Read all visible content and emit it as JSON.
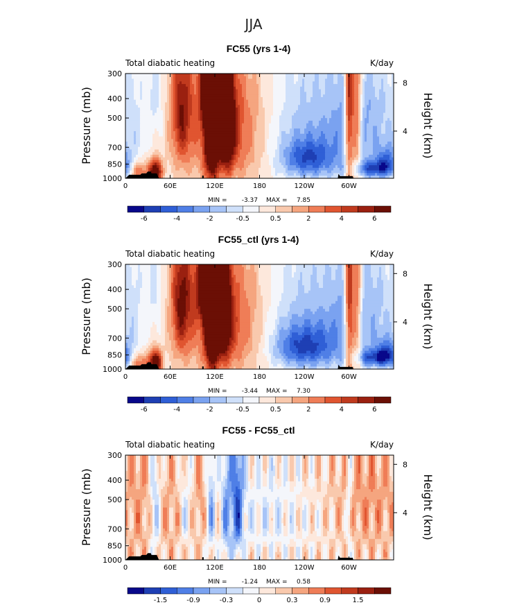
{
  "page_title": "JJA",
  "chart_data": [
    {
      "type": "heatmap",
      "title": "FC55 (yrs 1-4)",
      "left_string": "Total diabatic heating",
      "right_string": "K/day",
      "ylabel": "Pressure (mb)",
      "ylabel_right": "Height (km)",
      "x_ticks": [
        "0",
        "60E",
        "120E",
        "180",
        "120W",
        "60W"
      ],
      "y_ticks": [
        "300",
        "400",
        "500",
        "700",
        "850",
        "1000"
      ],
      "y_right_ticks": [
        "8",
        "4"
      ],
      "stats": {
        "min_label": "MIN =",
        "min": "-3.37",
        "max_label": "MAX =",
        "max": "7.85"
      },
      "colorbar": {
        "labels": [
          "-6",
          "-4",
          "-2",
          "-0.5",
          "0.5",
          "2",
          "4",
          "6"
        ],
        "colors": [
          "#08088a",
          "#1e3fb4",
          "#2f5fd6",
          "#4f7fe6",
          "#7aa2f0",
          "#a7c4f7",
          "#cfe0fa",
          "#f4f6fb",
          "#fde8dc",
          "#f9c9ad",
          "#f5a57f",
          "#ef7d57",
          "#e05530",
          "#c03a1e",
          "#9a2010",
          "#6b0f05"
        ]
      },
      "blobs": [
        {
          "lon": 315,
          "p": 550,
          "rx": 35,
          "ry": 300,
          "v": -2.5
        },
        {
          "lon": 330,
          "p": 900,
          "rx": 20,
          "ry": 60,
          "v": -3.3
        },
        {
          "lon": 40,
          "p": 380,
          "rx": 8,
          "ry": 150,
          "v": -1.2
        },
        {
          "lon": 75,
          "p": 450,
          "rx": 10,
          "ry": 250,
          "v": 4.2
        },
        {
          "lon": 110,
          "p": 350,
          "rx": 8,
          "ry": 120,
          "v": 4.5
        },
        {
          "lon": 115,
          "p": 500,
          "rx": 6,
          "ry": 350,
          "v": 7.5
        },
        {
          "lon": 135,
          "p": 500,
          "rx": 8,
          "ry": 250,
          "v": 6.5
        },
        {
          "lon": 125,
          "p": 550,
          "rx": 35,
          "ry": 320,
          "v": 2.8
        },
        {
          "lon": 160,
          "p": 600,
          "rx": 35,
          "ry": 300,
          "v": 1.6
        },
        {
          "lon": 300,
          "p": 470,
          "rx": 4,
          "ry": 420,
          "v": 6.0
        },
        {
          "lon": 310,
          "p": 450,
          "rx": 5,
          "ry": 400,
          "v": 5.0
        },
        {
          "lon": 40,
          "p": 930,
          "rx": 6,
          "ry": 90,
          "v": 7.0
        },
        {
          "lon": 18,
          "p": 930,
          "rx": 8,
          "ry": 80,
          "v": 3.5
        },
        {
          "lon": 245,
          "p": 800,
          "rx": 25,
          "ry": 120,
          "v": -3.2
        },
        {
          "lon": 232,
          "p": 600,
          "rx": 45,
          "ry": 300,
          "v": -2.0
        },
        {
          "lon": 350,
          "p": 830,
          "rx": 10,
          "ry": 100,
          "v": -3.0
        },
        {
          "lon": 10,
          "p": 700,
          "rx": 10,
          "ry": 400,
          "v": -0.8
        }
      ],
      "topo": [
        {
          "lon": 5,
          "p": 960
        },
        {
          "lon": 12,
          "p": 960
        },
        {
          "lon": 20,
          "p": 960
        },
        {
          "lon": 22,
          "p": 945
        },
        {
          "lon": 28,
          "p": 945
        },
        {
          "lon": 30,
          "p": 925
        },
        {
          "lon": 34,
          "p": 925
        },
        {
          "lon": 35,
          "p": 945
        },
        {
          "lon": 42,
          "p": 945
        },
        {
          "lon": 45,
          "p": 1000
        },
        {
          "lon": 103,
          "p": 1000
        },
        {
          "lon": 103,
          "p": 970
        },
        {
          "lon": 105,
          "p": 970
        },
        {
          "lon": 105,
          "p": 1000
        },
        {
          "lon": 285,
          "p": 1000
        },
        {
          "lon": 286,
          "p": 950
        },
        {
          "lon": 288,
          "p": 975
        },
        {
          "lon": 305,
          "p": 975
        },
        {
          "lon": 306,
          "p": 1000
        }
      ]
    },
    {
      "type": "heatmap",
      "title": "FC55_ctl (yrs 1-4)",
      "left_string": "Total diabatic heating",
      "right_string": "K/day",
      "ylabel": "Pressure (mb)",
      "ylabel_right": "Height (km)",
      "x_ticks": [
        "0",
        "60E",
        "120E",
        "180",
        "120W",
        "60W"
      ],
      "y_ticks": [
        "300",
        "400",
        "500",
        "700",
        "850",
        "1000"
      ],
      "y_right_ticks": [
        "8",
        "4"
      ],
      "stats": {
        "min_label": "MIN =",
        "min": "-3.44",
        "max_label": "MAX =",
        "max": "7.30"
      },
      "colorbar": {
        "labels": [
          "-6",
          "-4",
          "-2",
          "-0.5",
          "0.5",
          "2",
          "4",
          "6"
        ],
        "colors": [
          "#08088a",
          "#1e3fb4",
          "#2f5fd6",
          "#4f7fe6",
          "#7aa2f0",
          "#a7c4f7",
          "#cfe0fa",
          "#f4f6fb",
          "#fde8dc",
          "#f9c9ad",
          "#f5a57f",
          "#ef7d57",
          "#e05530",
          "#c03a1e",
          "#9a2010",
          "#6b0f05"
        ]
      },
      "blobs": [
        {
          "lon": 315,
          "p": 550,
          "rx": 35,
          "ry": 300,
          "v": -2.4
        },
        {
          "lon": 335,
          "p": 880,
          "rx": 20,
          "ry": 60,
          "v": -3.3
        },
        {
          "lon": 40,
          "p": 380,
          "rx": 8,
          "ry": 150,
          "v": -1.2
        },
        {
          "lon": 75,
          "p": 450,
          "rx": 10,
          "ry": 250,
          "v": 4.6
        },
        {
          "lon": 105,
          "p": 380,
          "rx": 8,
          "ry": 120,
          "v": 4.5
        },
        {
          "lon": 115,
          "p": 500,
          "rx": 6,
          "ry": 350,
          "v": 7.2
        },
        {
          "lon": 130,
          "p": 500,
          "rx": 8,
          "ry": 250,
          "v": 6.0
        },
        {
          "lon": 125,
          "p": 550,
          "rx": 35,
          "ry": 320,
          "v": 2.8
        },
        {
          "lon": 160,
          "p": 620,
          "rx": 35,
          "ry": 300,
          "v": 1.5
        },
        {
          "lon": 300,
          "p": 470,
          "rx": 4,
          "ry": 420,
          "v": 5.8
        },
        {
          "lon": 310,
          "p": 450,
          "rx": 5,
          "ry": 400,
          "v": 4.8
        },
        {
          "lon": 40,
          "p": 930,
          "rx": 6,
          "ry": 90,
          "v": 7.0
        },
        {
          "lon": 18,
          "p": 930,
          "rx": 8,
          "ry": 80,
          "v": 3.5
        },
        {
          "lon": 240,
          "p": 780,
          "rx": 30,
          "ry": 130,
          "v": -3.4
        },
        {
          "lon": 230,
          "p": 600,
          "rx": 45,
          "ry": 300,
          "v": -2.0
        },
        {
          "lon": 350,
          "p": 830,
          "rx": 10,
          "ry": 100,
          "v": -3.0
        },
        {
          "lon": 10,
          "p": 700,
          "rx": 10,
          "ry": 400,
          "v": -0.8
        }
      ],
      "topo": [
        {
          "lon": 5,
          "p": 960
        },
        {
          "lon": 12,
          "p": 960
        },
        {
          "lon": 20,
          "p": 960
        },
        {
          "lon": 22,
          "p": 945
        },
        {
          "lon": 28,
          "p": 945
        },
        {
          "lon": 30,
          "p": 925
        },
        {
          "lon": 34,
          "p": 925
        },
        {
          "lon": 35,
          "p": 945
        },
        {
          "lon": 42,
          "p": 945
        },
        {
          "lon": 45,
          "p": 1000
        },
        {
          "lon": 103,
          "p": 1000
        },
        {
          "lon": 103,
          "p": 970
        },
        {
          "lon": 105,
          "p": 970
        },
        {
          "lon": 105,
          "p": 1000
        },
        {
          "lon": 285,
          "p": 1000
        },
        {
          "lon": 286,
          "p": 950
        },
        {
          "lon": 288,
          "p": 975
        },
        {
          "lon": 305,
          "p": 975
        },
        {
          "lon": 306,
          "p": 1000
        }
      ]
    },
    {
      "type": "heatmap",
      "title": "FC55 - FC55_ctl",
      "left_string": "Total diabatic heating",
      "right_string": "K/day",
      "ylabel": "Pressure (mb)",
      "ylabel_right": "Height (km)",
      "x_ticks": [
        "0",
        "60E",
        "120E",
        "180",
        "120W",
        "60W"
      ],
      "y_ticks": [
        "300",
        "400",
        "500",
        "700",
        "850",
        "1000"
      ],
      "y_right_ticks": [
        "8",
        "4"
      ],
      "stats": {
        "min_label": "MIN =",
        "min": "-1.24",
        "max_label": "MAX =",
        "max": "0.58"
      },
      "colorbar": {
        "labels": [
          "-1.5",
          "-0.9",
          "-0.3",
          "0",
          "0.3",
          "0.9",
          "1.5"
        ],
        "colors": [
          "#08088a",
          "#1e3fb4",
          "#2f5fd6",
          "#4f7fe6",
          "#7aa2f0",
          "#a7c4f7",
          "#cfe0fa",
          "#f4f6fb",
          "#fde8dc",
          "#f9c9ad",
          "#f5a57f",
          "#ef7d57",
          "#e05530",
          "#c03a1e",
          "#9a2010",
          "#6b0f05"
        ]
      },
      "blobs": [
        {
          "lon": 150,
          "p": 500,
          "rx": 6,
          "ry": 300,
          "v": -1.1
        },
        {
          "lon": 135,
          "p": 550,
          "rx": 5,
          "ry": 350,
          "v": -0.7
        },
        {
          "lon": 115,
          "p": 520,
          "rx": 4,
          "ry": 300,
          "v": -0.7
        },
        {
          "lon": 40,
          "p": 500,
          "rx": 5,
          "ry": 350,
          "v": -0.6
        },
        {
          "lon": 80,
          "p": 550,
          "rx": 5,
          "ry": 250,
          "v": -0.4
        },
        {
          "lon": 180,
          "p": 550,
          "rx": 30,
          "ry": 300,
          "v": -0.25
        },
        {
          "lon": 235,
          "p": 650,
          "rx": 50,
          "ry": 300,
          "v": -0.2
        },
        {
          "lon": 320,
          "p": 500,
          "rx": 35,
          "ry": 280,
          "v": 0.35
        },
        {
          "lon": 60,
          "p": 600,
          "rx": 12,
          "ry": 300,
          "v": 0.2
        },
        {
          "lon": 20,
          "p": 500,
          "rx": 10,
          "ry": 400,
          "v": 0.2
        },
        {
          "lon": 100,
          "p": 450,
          "rx": 5,
          "ry": 200,
          "v": 0.3
        },
        {
          "lon": 300,
          "p": 450,
          "rx": 3,
          "ry": 350,
          "v": -0.5
        }
      ],
      "topo": [
        {
          "lon": 5,
          "p": 960
        },
        {
          "lon": 12,
          "p": 960
        },
        {
          "lon": 20,
          "p": 960
        },
        {
          "lon": 22,
          "p": 945
        },
        {
          "lon": 28,
          "p": 945
        },
        {
          "lon": 30,
          "p": 925
        },
        {
          "lon": 34,
          "p": 925
        },
        {
          "lon": 35,
          "p": 945
        },
        {
          "lon": 42,
          "p": 945
        },
        {
          "lon": 45,
          "p": 1000
        },
        {
          "lon": 103,
          "p": 1000
        },
        {
          "lon": 103,
          "p": 970
        },
        {
          "lon": 105,
          "p": 970
        },
        {
          "lon": 105,
          "p": 1000
        },
        {
          "lon": 285,
          "p": 1000
        },
        {
          "lon": 286,
          "p": 950
        },
        {
          "lon": 288,
          "p": 975
        },
        {
          "lon": 305,
          "p": 975
        },
        {
          "lon": 306,
          "p": 1000
        }
      ]
    }
  ]
}
